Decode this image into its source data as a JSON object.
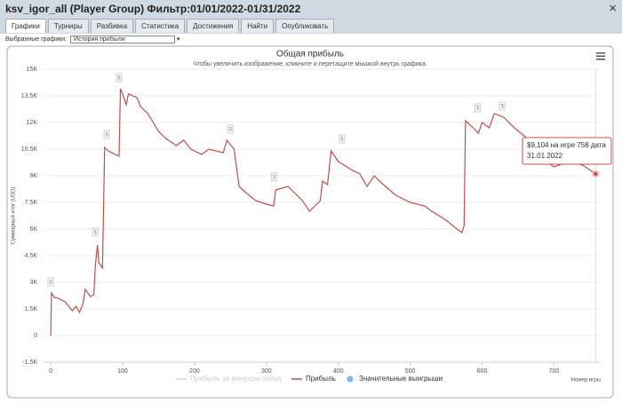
{
  "window": {
    "title": "ksv_igor_all (Player Group) Фильтр:01/01/2022-01/31/2022",
    "close": "×"
  },
  "tabs": [
    "Графики",
    "Турниры",
    "Разбивка",
    "Статистика",
    "Достижения",
    "Найти",
    "Опубликовать"
  ],
  "active_tab": 0,
  "selector": {
    "label": "Выбранные графики:",
    "value": "История прибыли"
  },
  "chart_data": {
    "type": "line",
    "title": "Общая прибыль",
    "subtitle": "Чтобы увеличить изображение, кликните и перетащите мышкой внутрь графика.",
    "x_label": "Номер игры",
    "y_label": "Суммарный итог (USD)",
    "xlim": [
      -10,
      765
    ],
    "xticks": [
      0,
      100,
      200,
      300,
      400,
      500,
      600,
      700
    ],
    "ylim": [
      -1500,
      15000
    ],
    "yticks": [
      {
        "value": -1500,
        "label": "-1.5K"
      },
      0,
      {
        "value": 1500,
        "label": "1.5K"
      },
      {
        "value": 3000,
        "label": "3K"
      },
      {
        "value": 4500,
        "label": "4.5K"
      },
      {
        "value": 6000,
        "label": "6K"
      },
      {
        "value": 7500,
        "label": "7.5K"
      },
      {
        "value": 9000,
        "label": "9K"
      },
      {
        "value": 10500,
        "label": "10.5K"
      },
      {
        "value": 12000,
        "label": "12K"
      },
      {
        "value": 13500,
        "label": "13.5K"
      },
      {
        "value": 15000,
        "label": "15K"
      }
    ],
    "grid": true,
    "x": [
      0,
      1,
      5,
      10,
      20,
      30,
      35,
      40,
      45,
      48,
      55,
      60,
      62,
      65,
      67,
      72,
      75,
      80,
      95,
      97,
      100,
      105,
      108,
      120,
      125,
      135,
      150,
      160,
      175,
      185,
      195,
      210,
      220,
      230,
      240,
      245,
      255,
      262,
      270,
      285,
      300,
      310,
      313,
      330,
      350,
      360,
      370,
      375,
      378,
      385,
      390,
      400,
      420,
      430,
      440,
      450,
      460,
      480,
      500,
      520,
      530,
      550,
      565,
      572,
      575,
      577,
      585,
      595,
      600,
      610,
      617,
      630,
      645,
      660,
      670,
      680,
      700,
      720,
      740,
      758
    ],
    "series": [
      {
        "name": "Прибыль за минусом рейка",
        "color": "#d0d0d0"
      },
      {
        "name": "Прибыль",
        "color": "#c0504d",
        "values": [
          0,
          2400,
          2150,
          2100,
          1900,
          1400,
          1650,
          1300,
          1800,
          2600,
          2200,
          2300,
          3900,
          5100,
          4100,
          3800,
          10600,
          10400,
          10100,
          13900,
          13600,
          13000,
          13600,
          13400,
          12900,
          12500,
          11500,
          11100,
          10700,
          11000,
          10500,
          10200,
          10500,
          10400,
          10300,
          11000,
          10500,
          8400,
          8100,
          7600,
          7400,
          7300,
          8200,
          8400,
          7600,
          7000,
          7400,
          7600,
          8700,
          8500,
          10400,
          9800,
          9300,
          9100,
          8400,
          9000,
          8600,
          7900,
          7500,
          7300,
          7000,
          6500,
          6000,
          5800,
          6200,
          12100,
          11800,
          11400,
          12000,
          11700,
          12500,
          12300,
          11700,
          11200,
          10500,
          10100,
          9500,
          9800,
          9600,
          9104
        ]
      },
      {
        "name": "Значительные выигрыши",
        "color": "#7cb5ec",
        "x": [
          0,
          62,
          78,
          95,
          250,
          311,
          405,
          594,
          628
        ],
        "values": [
          3000,
          5800,
          11300,
          14500,
          11600,
          8900,
          11050,
          12800,
          12900
        ]
      }
    ],
    "flag_label": "$",
    "tooltip": {
      "lines": [
        "$9,104 на игре 758 дата",
        "31.01.2022"
      ]
    }
  }
}
